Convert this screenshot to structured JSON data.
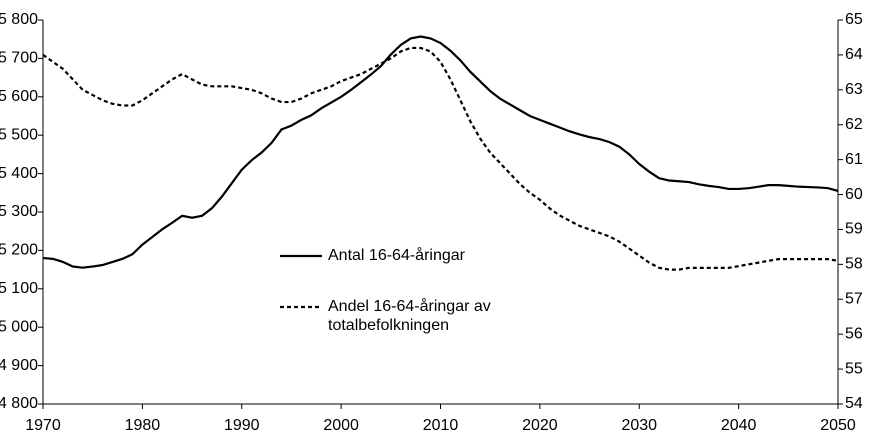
{
  "chart_data": {
    "type": "line",
    "x": [
      1970,
      1971,
      1972,
      1973,
      1974,
      1975,
      1976,
      1977,
      1978,
      1979,
      1980,
      1981,
      1982,
      1983,
      1984,
      1985,
      1986,
      1987,
      1988,
      1989,
      1990,
      1991,
      1992,
      1993,
      1994,
      1995,
      1996,
      1997,
      1998,
      1999,
      2000,
      2001,
      2002,
      2003,
      2004,
      2005,
      2006,
      2007,
      2008,
      2009,
      2010,
      2011,
      2012,
      2013,
      2014,
      2015,
      2016,
      2017,
      2018,
      2019,
      2020,
      2021,
      2022,
      2023,
      2024,
      2025,
      2026,
      2027,
      2028,
      2029,
      2030,
      2031,
      2032,
      2033,
      2034,
      2035,
      2036,
      2037,
      2038,
      2039,
      2040,
      2041,
      2042,
      2043,
      2044,
      2045,
      2046,
      2047,
      2048,
      2049,
      2050
    ],
    "series": [
      {
        "name": "Antal 16-64-åringar",
        "color": "#000000",
        "line_style": "solid",
        "values": [
          5180,
          5178,
          5170,
          5158,
          5155,
          5158,
          5162,
          5170,
          5178,
          5190,
          5215,
          5235,
          5255,
          5272,
          5290,
          5285,
          5290,
          5310,
          5340,
          5375,
          5410,
          5435,
          5455,
          5480,
          5515,
          5525,
          5540,
          5552,
          5570,
          5585,
          5600,
          5618,
          5638,
          5658,
          5680,
          5710,
          5735,
          5752,
          5757,
          5752,
          5740,
          5720,
          5695,
          5665,
          5640,
          5615,
          5595,
          5580,
          5565,
          5550,
          5540,
          5530,
          5520,
          5510,
          5502,
          5495,
          5490,
          5482,
          5470,
          5450,
          5425,
          5405,
          5388,
          5382,
          5380,
          5378,
          5372,
          5368,
          5365,
          5360,
          5360,
          5362,
          5366,
          5370,
          5370,
          5368,
          5366,
          5365,
          5364,
          5362,
          5355
        ]
      },
      {
        "name": "Andel 16-64-åringar av totalbefolkningen",
        "color": "#000000",
        "line_style": "dashed",
        "axis": "y2",
        "values": [
          64.0,
          63.8,
          63.6,
          63.3,
          63.0,
          62.85,
          62.7,
          62.6,
          62.55,
          62.55,
          62.7,
          62.9,
          63.1,
          63.3,
          63.45,
          63.3,
          63.15,
          63.1,
          63.1,
          63.1,
          63.05,
          63.0,
          62.9,
          62.75,
          62.65,
          62.65,
          62.75,
          62.9,
          63.0,
          63.1,
          63.25,
          63.35,
          63.45,
          63.6,
          63.75,
          63.9,
          64.1,
          64.2,
          64.2,
          64.1,
          63.8,
          63.3,
          62.7,
          62.1,
          61.6,
          61.2,
          60.9,
          60.6,
          60.3,
          60.05,
          59.85,
          59.6,
          59.4,
          59.25,
          59.1,
          59.0,
          58.9,
          58.8,
          58.65,
          58.45,
          58.25,
          58.05,
          57.9,
          57.85,
          57.85,
          57.9,
          57.9,
          57.9,
          57.9,
          57.9,
          57.95,
          58.0,
          58.05,
          58.1,
          58.15,
          58.15,
          58.15,
          58.15,
          58.15,
          58.15,
          58.1
        ]
      }
    ],
    "xlim": [
      1970,
      2050
    ],
    "xticks": [
      1970,
      1980,
      1990,
      2000,
      2010,
      2020,
      2030,
      2040,
      2050
    ],
    "ylim": [
      4800,
      5800
    ],
    "yticks": [
      {
        "value": 4800,
        "label": "4 800"
      },
      {
        "value": 4900,
        "label": "4 900"
      },
      {
        "value": 5000,
        "label": "5 000"
      },
      {
        "value": 5100,
        "label": "5 100"
      },
      {
        "value": 5200,
        "label": "5 200"
      },
      {
        "value": 5300,
        "label": "5 300"
      },
      {
        "value": 5400,
        "label": "5 400"
      },
      {
        "value": 5500,
        "label": "5 500"
      },
      {
        "value": 5600,
        "label": "5 600"
      },
      {
        "value": 5700,
        "label": "5 700"
      },
      {
        "value": 5800,
        "label": "5 800"
      }
    ],
    "y2lim": [
      54,
      65
    ],
    "y2ticks": [
      54,
      55,
      56,
      57,
      58,
      59,
      60,
      61,
      62,
      63,
      64,
      65
    ],
    "grid": false
  }
}
